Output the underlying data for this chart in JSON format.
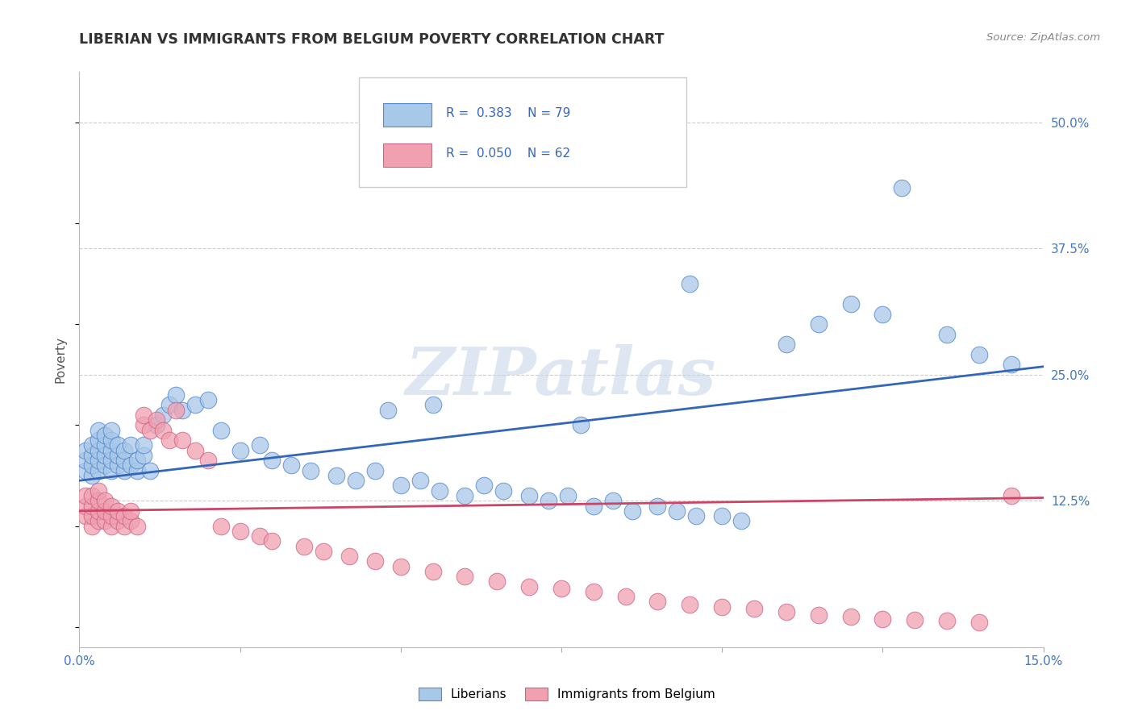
{
  "title": "LIBERIAN VS IMMIGRANTS FROM BELGIUM POVERTY CORRELATION CHART",
  "source_text": "Source: ZipAtlas.com",
  "ylabel": "Poverty",
  "xlim": [
    0.0,
    0.15
  ],
  "ylim": [
    -0.02,
    0.55
  ],
  "xticks": [
    0.0,
    0.025,
    0.05,
    0.075,
    0.1,
    0.125,
    0.15
  ],
  "xticklabels": [
    "0.0%",
    "",
    "",
    "",
    "",
    "",
    "15.0%"
  ],
  "ytick_positions": [
    0.125,
    0.25,
    0.375,
    0.5
  ],
  "ytick_labels": [
    "12.5%",
    "25.0%",
    "37.5%",
    "50.0%"
  ],
  "blue_fill": "#a8c8e8",
  "blue_edge": "#5588cc",
  "pink_fill": "#f0a0b0",
  "pink_edge": "#cc6688",
  "blue_line_color": "#3366bb",
  "pink_line_color": "#cc4466",
  "legend_blue_r": "R = 0.383",
  "legend_blue_n": "N = 79",
  "legend_pink_r": "R = 0.050",
  "legend_pink_n": "N = 62",
  "blue_label": "Liberians",
  "pink_label": "Immigrants from Belgium",
  "watermark": "ZIPatlas",
  "blue_trend_x0": 0.0,
  "blue_trend_y0": 0.145,
  "blue_trend_x1": 0.15,
  "blue_trend_y1": 0.258,
  "pink_trend_x0": 0.0,
  "pink_trend_y0": 0.115,
  "pink_trend_x1": 0.15,
  "pink_trend_y1": 0.128,
  "blue_x": [
    0.001,
    0.001,
    0.001,
    0.002,
    0.002,
    0.002,
    0.002,
    0.003,
    0.003,
    0.003,
    0.003,
    0.003,
    0.004,
    0.004,
    0.004,
    0.004,
    0.005,
    0.005,
    0.005,
    0.005,
    0.005,
    0.006,
    0.006,
    0.006,
    0.007,
    0.007,
    0.007,
    0.008,
    0.008,
    0.009,
    0.009,
    0.01,
    0.01,
    0.011,
    0.012,
    0.013,
    0.014,
    0.015,
    0.016,
    0.018,
    0.02,
    0.022,
    0.025,
    0.028,
    0.03,
    0.033,
    0.036,
    0.04,
    0.043,
    0.046,
    0.05,
    0.053,
    0.056,
    0.06,
    0.063,
    0.066,
    0.07,
    0.073,
    0.076,
    0.08,
    0.083,
    0.086,
    0.09,
    0.093,
    0.096,
    0.1,
    0.103,
    0.11,
    0.115,
    0.12,
    0.125,
    0.128,
    0.135,
    0.14,
    0.145,
    0.048,
    0.055,
    0.078,
    0.095
  ],
  "blue_y": [
    0.155,
    0.165,
    0.175,
    0.15,
    0.16,
    0.17,
    0.18,
    0.155,
    0.165,
    0.175,
    0.185,
    0.195,
    0.16,
    0.17,
    0.18,
    0.19,
    0.155,
    0.165,
    0.175,
    0.185,
    0.195,
    0.16,
    0.17,
    0.18,
    0.155,
    0.165,
    0.175,
    0.16,
    0.18,
    0.155,
    0.165,
    0.17,
    0.18,
    0.155,
    0.2,
    0.21,
    0.22,
    0.23,
    0.215,
    0.22,
    0.225,
    0.195,
    0.175,
    0.18,
    0.165,
    0.16,
    0.155,
    0.15,
    0.145,
    0.155,
    0.14,
    0.145,
    0.135,
    0.13,
    0.14,
    0.135,
    0.13,
    0.125,
    0.13,
    0.12,
    0.125,
    0.115,
    0.12,
    0.115,
    0.11,
    0.11,
    0.105,
    0.28,
    0.3,
    0.32,
    0.31,
    0.435,
    0.29,
    0.27,
    0.26,
    0.215,
    0.22,
    0.2,
    0.34
  ],
  "pink_x": [
    0.001,
    0.001,
    0.001,
    0.002,
    0.002,
    0.002,
    0.002,
    0.003,
    0.003,
    0.003,
    0.003,
    0.004,
    0.004,
    0.004,
    0.005,
    0.005,
    0.005,
    0.006,
    0.006,
    0.007,
    0.007,
    0.008,
    0.008,
    0.009,
    0.01,
    0.01,
    0.011,
    0.012,
    0.013,
    0.014,
    0.015,
    0.016,
    0.018,
    0.02,
    0.022,
    0.025,
    0.028,
    0.03,
    0.035,
    0.038,
    0.042,
    0.046,
    0.05,
    0.055,
    0.06,
    0.065,
    0.07,
    0.075,
    0.08,
    0.085,
    0.09,
    0.095,
    0.1,
    0.105,
    0.11,
    0.115,
    0.12,
    0.125,
    0.13,
    0.135,
    0.14,
    0.145
  ],
  "pink_y": [
    0.11,
    0.12,
    0.13,
    0.1,
    0.11,
    0.12,
    0.13,
    0.105,
    0.115,
    0.125,
    0.135,
    0.105,
    0.115,
    0.125,
    0.1,
    0.11,
    0.12,
    0.105,
    0.115,
    0.1,
    0.11,
    0.105,
    0.115,
    0.1,
    0.2,
    0.21,
    0.195,
    0.205,
    0.195,
    0.185,
    0.215,
    0.185,
    0.175,
    0.165,
    0.1,
    0.095,
    0.09,
    0.085,
    0.08,
    0.075,
    0.07,
    0.065,
    0.06,
    0.055,
    0.05,
    0.045,
    0.04,
    0.038,
    0.035,
    0.03,
    0.025,
    0.022,
    0.02,
    0.018,
    0.015,
    0.012,
    0.01,
    0.008,
    0.007,
    0.006,
    0.005,
    0.13
  ]
}
